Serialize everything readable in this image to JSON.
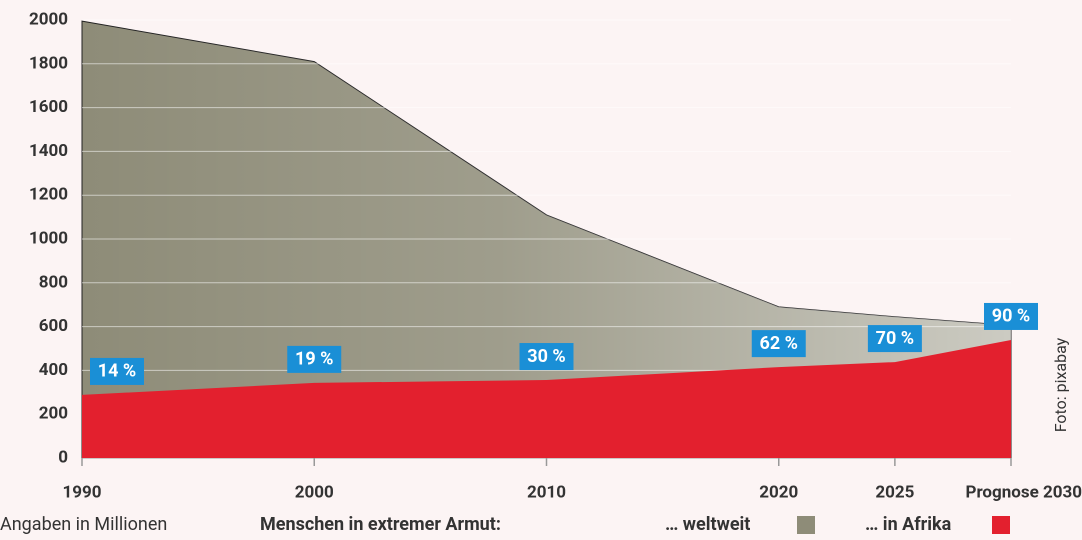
{
  "chart_data": {
    "type": "area",
    "x": [
      1990,
      2000,
      2010,
      2020,
      2025,
      2030
    ],
    "series": [
      {
        "name": "… weltweit",
        "color": "#8e8c78",
        "values": [
          1995,
          1810,
          1110,
          690,
          645,
          605
        ]
      },
      {
        "name": "… in Afrika",
        "color": "#e3202e",
        "values": [
          288,
          343,
          356,
          415,
          438,
          539
        ]
      }
    ],
    "annotations": [
      "14 %",
      "19 %",
      "30 %",
      "62 %",
      "70 %",
      "90 %"
    ],
    "annotation_color": "#1a8fd6",
    "xlim": [
      1990,
      2030
    ],
    "xticks": [
      1990,
      2000,
      2010,
      2020,
      2025,
      {
        "value": 2030,
        "label": "Prognose 2030"
      }
    ],
    "ylim": [
      0,
      2000
    ],
    "yticks": [
      0,
      200,
      400,
      600,
      800,
      1000,
      1200,
      1400,
      1600,
      1800,
      2000
    ],
    "grid": true,
    "unit_note": "Angaben in Millionen",
    "legend_title": "Menschen in extremer Armut:",
    "credit": "Foto: pixabay"
  }
}
